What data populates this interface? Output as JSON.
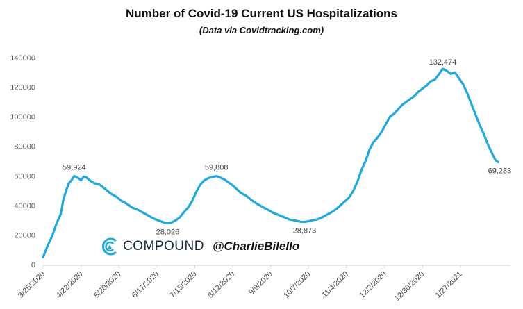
{
  "chart_data": {
    "type": "line",
    "title": "Number of Covid-19 Current US Hospitalizations",
    "subtitle": "(Data via Covidtracking.com)",
    "xlabel": "",
    "ylabel": "",
    "ylim": [
      0,
      140000
    ],
    "yticks": [
      0,
      20000,
      40000,
      60000,
      80000,
      100000,
      120000,
      140000
    ],
    "ytick_labels": [
      "0",
      "20000",
      "40000",
      "60000",
      "80000",
      "100000",
      "120000",
      "140000"
    ],
    "xtick_labels": [
      "3/25/2020",
      "4/22/2020",
      "5/20/2020",
      "6/17/2020",
      "7/15/2020",
      "8/12/2020",
      "9/9/2020",
      "10/7/2020",
      "11/4/2020",
      "12/2/2020",
      "12/30/2020",
      "1/27/2021"
    ],
    "grid": false,
    "line_color": "#1ca9e1",
    "series": [
      {
        "name": "Current US Hospitalizations",
        "points": [
          [
            0,
            5000
          ],
          [
            3,
            12000
          ],
          [
            7,
            20000
          ],
          [
            10,
            28000
          ],
          [
            13,
            34000
          ],
          [
            15,
            44000
          ],
          [
            17,
            50000
          ],
          [
            19,
            55000
          ],
          [
            21,
            57000
          ],
          [
            23,
            59924
          ],
          [
            26,
            58500
          ],
          [
            28,
            57000
          ],
          [
            30,
            59500
          ],
          [
            32,
            59000
          ],
          [
            35,
            56500
          ],
          [
            38,
            55000
          ],
          [
            42,
            54000
          ],
          [
            46,
            51000
          ],
          [
            50,
            48000
          ],
          [
            54,
            46000
          ],
          [
            58,
            43000
          ],
          [
            62,
            41000
          ],
          [
            66,
            38500
          ],
          [
            70,
            37000
          ],
          [
            74,
            35000
          ],
          [
            78,
            33000
          ],
          [
            82,
            31000
          ],
          [
            86,
            29500
          ],
          [
            90,
            28300
          ],
          [
            92,
            28026
          ],
          [
            95,
            28500
          ],
          [
            98,
            30000
          ],
          [
            101,
            32000
          ],
          [
            104,
            35500
          ],
          [
            107,
            38500
          ],
          [
            110,
            43000
          ],
          [
            113,
            49000
          ],
          [
            116,
            54000
          ],
          [
            119,
            57000
          ],
          [
            122,
            58500
          ],
          [
            125,
            59300
          ],
          [
            128,
            59808
          ],
          [
            131,
            58800
          ],
          [
            134,
            57500
          ],
          [
            137,
            55500
          ],
          [
            140,
            53500
          ],
          [
            143,
            51000
          ],
          [
            146,
            48500
          ],
          [
            150,
            46500
          ],
          [
            154,
            43500
          ],
          [
            158,
            41000
          ],
          [
            162,
            39000
          ],
          [
            166,
            37000
          ],
          [
            170,
            35000
          ],
          [
            174,
            33500
          ],
          [
            178,
            32000
          ],
          [
            182,
            30500
          ],
          [
            186,
            29800
          ],
          [
            190,
            29000
          ],
          [
            193,
            28873
          ],
          [
            196,
            29300
          ],
          [
            199,
            30000
          ],
          [
            202,
            30500
          ],
          [
            205,
            31500
          ],
          [
            208,
            33000
          ],
          [
            211,
            34500
          ],
          [
            214,
            36000
          ],
          [
            217,
            38000
          ],
          [
            220,
            40500
          ],
          [
            223,
            43000
          ],
          [
            226,
            45500
          ],
          [
            229,
            50000
          ],
          [
            232,
            56000
          ],
          [
            235,
            64000
          ],
          [
            238,
            70000
          ],
          [
            241,
            78000
          ],
          [
            244,
            83000
          ],
          [
            247,
            86000
          ],
          [
            250,
            90000
          ],
          [
            253,
            95000
          ],
          [
            256,
            100000
          ],
          [
            259,
            102000
          ],
          [
            262,
            105000
          ],
          [
            265,
            108000
          ],
          [
            268,
            110000
          ],
          [
            271,
            112000
          ],
          [
            274,
            114000
          ],
          [
            277,
            117000
          ],
          [
            280,
            119000
          ],
          [
            283,
            121000
          ],
          [
            286,
            124000
          ],
          [
            289,
            125000
          ],
          [
            292,
            128500
          ],
          [
            295,
            132474
          ],
          [
            298,
            131000
          ],
          [
            301,
            129000
          ],
          [
            304,
            130000
          ],
          [
            307,
            126000
          ],
          [
            310,
            122000
          ],
          [
            313,
            116000
          ],
          [
            316,
            109000
          ],
          [
            319,
            102000
          ],
          [
            322,
            95000
          ],
          [
            325,
            89000
          ],
          [
            328,
            82000
          ],
          [
            331,
            76000
          ],
          [
            334,
            70500
          ],
          [
            336,
            69283
          ]
        ]
      }
    ],
    "annotations": [
      {
        "x": 23,
        "y": 59924,
        "label": "59,924"
      },
      {
        "x": 92,
        "y": 28026,
        "label": "28,026"
      },
      {
        "x": 128,
        "y": 59808,
        "label": "59,808"
      },
      {
        "x": 193,
        "y": 28873,
        "label": "28,873"
      },
      {
        "x": 295,
        "y": 132474,
        "label": "132,474"
      },
      {
        "x": 336,
        "y": 69283,
        "label": "69,283"
      }
    ],
    "x_range_days": [
      0,
      336
    ],
    "x_unit": "days since 3/25/2020",
    "tick_interval_days": 28
  },
  "watermark": {
    "brand_name": "COMPOUND",
    "handle": "@CharlieBilello",
    "logo_icon": "compound-c-logo-icon"
  }
}
